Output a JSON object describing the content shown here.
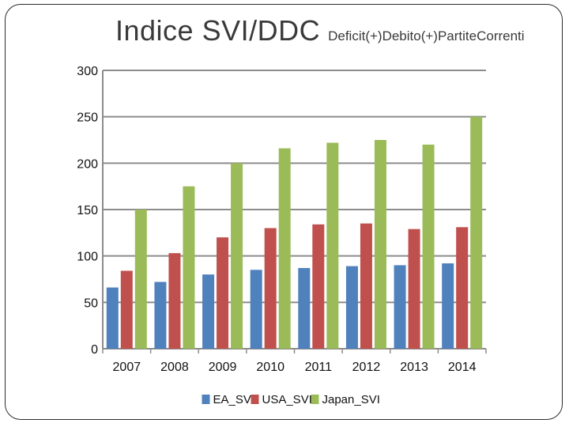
{
  "slide": {
    "title": "Indice SVI/DDC",
    "subtitle": "Deficit(+)Debito(+)PartiteCorrenti"
  },
  "chart_data": {
    "type": "bar",
    "title": "",
    "xlabel": "",
    "ylabel": "",
    "categories": [
      "2007",
      "2008",
      "2009",
      "2010",
      "2011",
      "2012",
      "2013",
      "2014"
    ],
    "series": [
      {
        "name": "EA_SVI",
        "color": "#4f81bd",
        "values": [
          66,
          72,
          80,
          85,
          87,
          89,
          90,
          92
        ]
      },
      {
        "name": "USA_SVI",
        "color": "#c0504d",
        "values": [
          84,
          103,
          120,
          130,
          134,
          135,
          129,
          131
        ]
      },
      {
        "name": "Japan_SVI",
        "color": "#9bbb59",
        "values": [
          150,
          175,
          200,
          216,
          222,
          225,
          220,
          250
        ]
      }
    ],
    "ylim": [
      0,
      300
    ],
    "yticks": [
      "0",
      "50",
      "100",
      "150",
      "200",
      "250",
      "300"
    ],
    "grid": true,
    "legend_position": "bottom"
  }
}
